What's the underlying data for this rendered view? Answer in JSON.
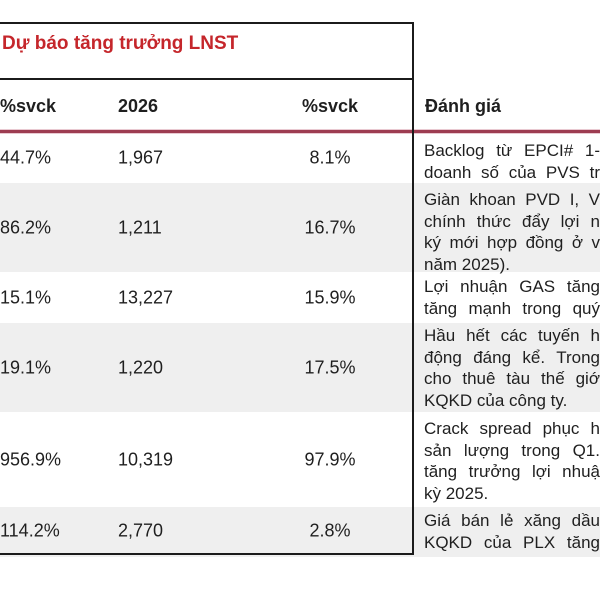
{
  "table": {
    "title": "Dự báo tăng trưởng LNST",
    "headers": {
      "col1": "%svck",
      "col2": "2026",
      "col3": "%svck",
      "col4": "Đánh giá"
    },
    "rows": [
      {
        "svck1": "44.7%",
        "y2026": "1,967",
        "svck2": "8.1%",
        "note": [
          "Backlog từ EPCI# 1-",
          "doanh số của PVS tr"
        ]
      },
      {
        "svck1": "86.2%",
        "y2026": "1,211",
        "svck2": "16.7%",
        "note": [
          "Giàn khoan PVD I, V",
          "chính thức đẩy lợi n",
          "ký mới hợp đồng ở v",
          "năm 2025)."
        ]
      },
      {
        "svck1": "15.1%",
        "y2026": "13,227",
        "svck2": "15.9%",
        "note": [
          "Lợi nhuận GAS tăng",
          "tăng mạnh trong quý"
        ]
      },
      {
        "svck1": "19.1%",
        "y2026": "1,220",
        "svck2": "17.5%",
        "note": [
          "Hầu hết các tuyến h",
          "động đáng kể. Trong",
          "cho thuê tàu thế giớ",
          "KQKD của công ty."
        ]
      },
      {
        "svck1": "956.9%",
        "y2026": "10,319",
        "svck2": "97.9%",
        "note": [
          "Crack spread phục h",
          "sản lượng trong Q1.",
          "tăng trưởng lợi nhuậ",
          "kỳ 2025."
        ]
      },
      {
        "svck1": "114.2%",
        "y2026": "2,770",
        "svck2": "2.8%",
        "note": [
          "Giá bán lẻ xăng dầu",
          "KQKD của PLX tăng"
        ]
      }
    ],
    "colors": {
      "title_red": "#c5262b",
      "divider_maroon": "#9d3c51",
      "row_alt_gray": "#efefef",
      "border_black": "#1b1b1b"
    }
  }
}
